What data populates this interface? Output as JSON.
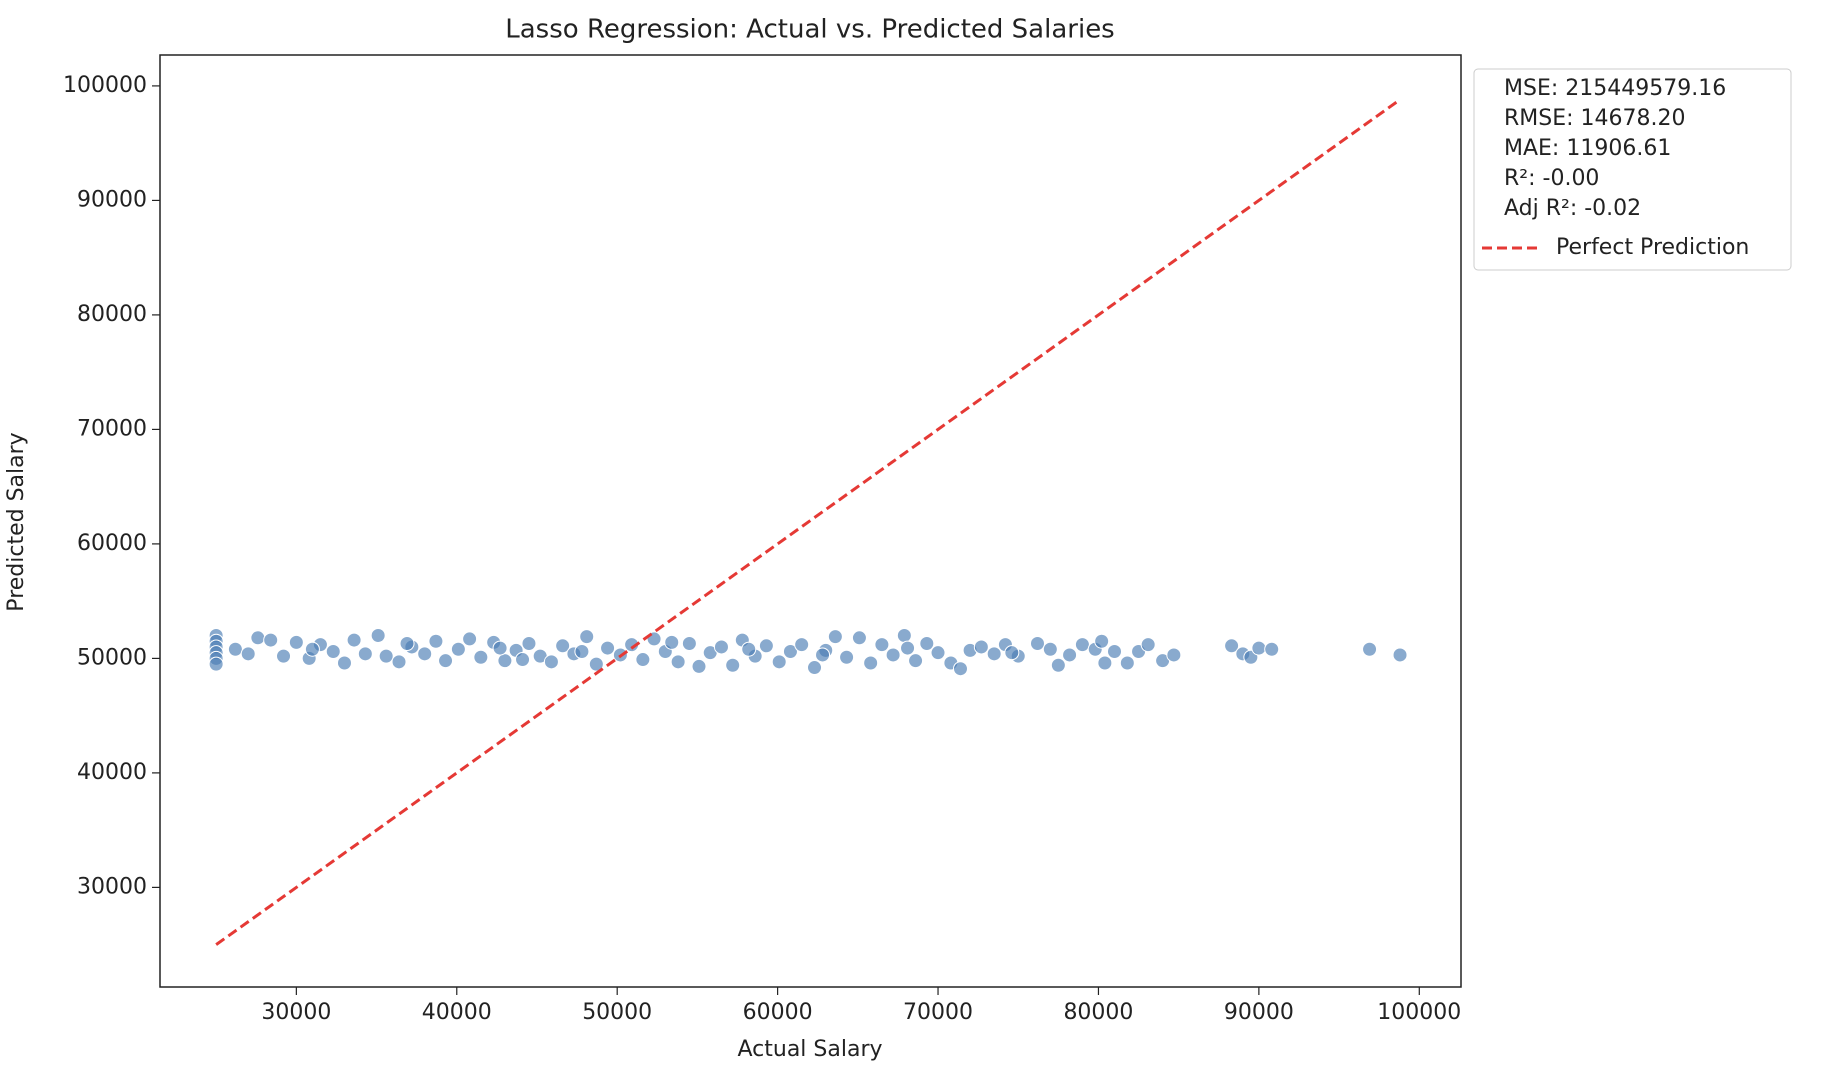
{
  "chart_data": {
    "type": "scatter",
    "title": "Lasso Regression: Actual vs. Predicted Salaries",
    "xlabel": "Actual Salary",
    "ylabel": "Predicted Salary",
    "xlim": [
      21500,
      102600
    ],
    "ylim": [
      21300,
      102700
    ],
    "xticks": [
      30000,
      40000,
      50000,
      60000,
      70000,
      80000,
      90000,
      100000
    ],
    "yticks": [
      30000,
      40000,
      50000,
      60000,
      70000,
      80000,
      90000,
      100000
    ],
    "grid": false,
    "legend": "outside upper right",
    "annotations": [
      "MSE: 215449579.16",
      "RMSE: 14678.20",
      "MAE: 11906.61",
      "R²: -0.00",
      "Adj R²: -0.02"
    ],
    "color": "#4a7db3",
    "x": [
      25000,
      25000,
      25000,
      25000,
      25000,
      25000,
      26200,
      27000,
      27600,
      28400,
      29200,
      30000,
      30800,
      31500,
      32300,
      33000,
      33600,
      34300,
      35100,
      35600,
      36400,
      37200,
      38000,
      38700,
      39300,
      40100,
      40800,
      41500,
      42300,
      43000,
      43700,
      44500,
      45200,
      45900,
      46600,
      47300,
      48100,
      48700,
      49400,
      50200,
      50900,
      51600,
      52300,
      53000,
      53800,
      54500,
      55100,
      55800,
      56500,
      57200,
      57800,
      58600,
      59300,
      60100,
      60800,
      61500,
      62300,
      63000,
      63600,
      64300,
      65100,
      65800,
      66500,
      67200,
      67900,
      68600,
      69300,
      70000,
      70800,
      71400,
      72000,
      72700,
      73500,
      74200,
      75000,
      76200,
      77000,
      77500,
      78200,
      79000,
      79800,
      80200,
      80400,
      81000,
      81800,
      82500,
      83100,
      84000,
      84700,
      88300,
      89000,
      89500,
      90000,
      90800,
      96900,
      98800,
      31000,
      36900,
      42700,
      47800,
      53400,
      58200,
      62800,
      68100,
      74600,
      44100
    ],
    "y": [
      52000,
      51500,
      51000,
      50500,
      50000,
      49500,
      50800,
      50400,
      51800,
      51600,
      50200,
      51400,
      50000,
      51200,
      50600,
      49600,
      51600,
      50400,
      52000,
      50200,
      49700,
      51000,
      50400,
      51500,
      49800,
      50800,
      51700,
      50100,
      51400,
      49800,
      50700,
      51300,
      50200,
      49700,
      51100,
      50400,
      51900,
      49500,
      50900,
      50300,
      51200,
      49900,
      51700,
      50600,
      49700,
      51300,
      49300,
      50500,
      51000,
      49400,
      51600,
      50200,
      51100,
      49700,
      50600,
      51200,
      49200,
      50700,
      51900,
      50100,
      51800,
      49600,
      51200,
      50300,
      52000,
      49800,
      51300,
      50500,
      49600,
      49100,
      50700,
      51000,
      50400,
      51200,
      50200,
      51300,
      50800,
      49400,
      50300,
      51200,
      50800,
      51500,
      49600,
      50600,
      49600,
      50600,
      51200,
      49800,
      50300,
      51100,
      50400,
      50100,
      50900,
      50800,
      50800,
      50300,
      50800,
      51300,
      50900,
      50600,
      51400,
      50800,
      50300,
      50900,
      50500,
      49900
    ],
    "reference_line": {
      "name": "Perfect Prediction",
      "color": "#e53935",
      "style": "dashed",
      "x": [
        25000,
        98800
      ],
      "y": [
        25000,
        98800
      ]
    }
  }
}
